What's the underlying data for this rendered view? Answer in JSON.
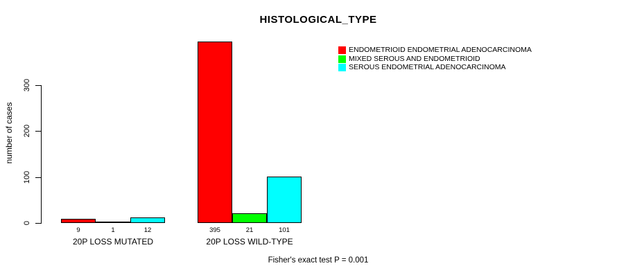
{
  "title": "HISTOLOGICAL_TYPE",
  "y_axis": {
    "label": "number of cases",
    "ticks": [
      0,
      100,
      200,
      300
    ]
  },
  "legend": {
    "items": [
      {
        "label": "ENDOMETRIOID ENDOMETRIAL ADENOCARCINOMA",
        "color": "#FF0000"
      },
      {
        "label": "MIXED SEROUS AND ENDOMETRIOID",
        "color": "#00FF00"
      },
      {
        "label": "SEROUS ENDOMETRIAL ADENOCARCINOMA",
        "color": "#00FFFF"
      }
    ]
  },
  "footer": "Fisher's exact test P = 0.001",
  "chart_data": {
    "type": "bar",
    "title": "HISTOLOGICAL_TYPE",
    "xlabel": "",
    "ylabel": "number of cases",
    "ylim": [
      0,
      300
    ],
    "yticks": [
      0,
      100,
      200,
      300
    ],
    "grid": false,
    "legend_position": "right",
    "categories": [
      "20P LOSS MUTATED",
      "20P LOSS WILD-TYPE"
    ],
    "series": [
      {
        "name": "ENDOMETRIOID ENDOMETRIAL ADENOCARCINOMA",
        "color": "#FF0000",
        "values": [
          9,
          395
        ]
      },
      {
        "name": "MIXED SEROUS AND ENDOMETRIOID",
        "color": "#00FF00",
        "values": [
          1,
          21
        ]
      },
      {
        "name": "SEROUS ENDOMETRIAL ADENOCARCINOMA",
        "color": "#00FFFF",
        "values": [
          12,
          101
        ]
      }
    ],
    "bar_labels": [
      [
        9,
        1,
        12
      ],
      [
        395,
        21,
        101
      ]
    ],
    "annotation": "Fisher's exact test P = 0.001"
  }
}
